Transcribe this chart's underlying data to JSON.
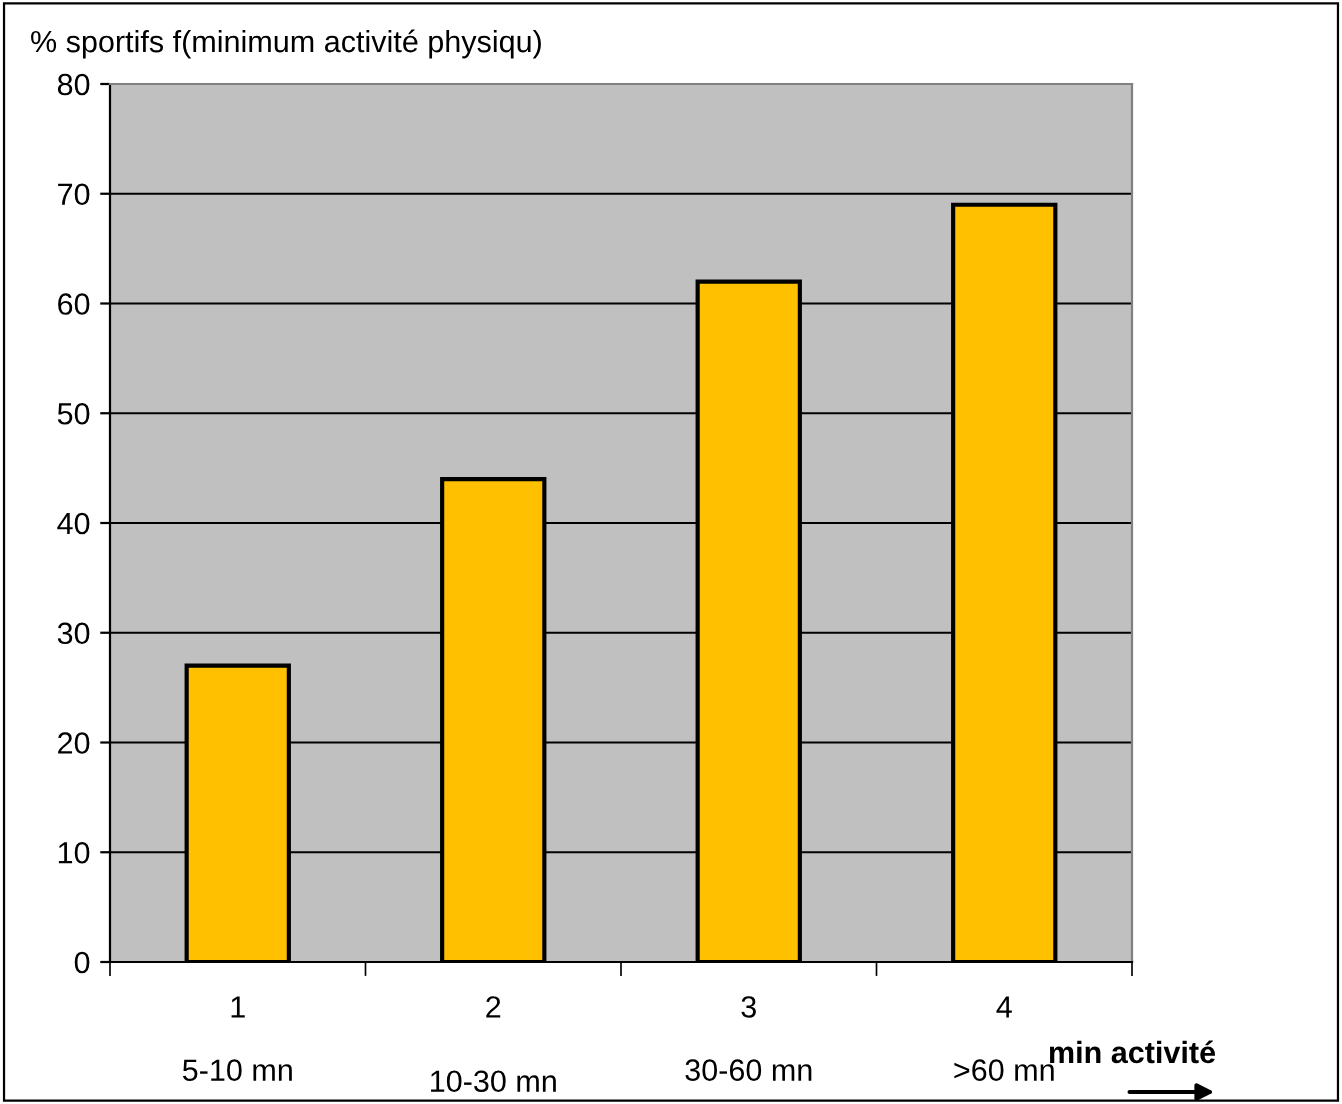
{
  "chart_data": {
    "type": "bar",
    "title": "% sportifs f(minimum activité physiqu)",
    "categories": [
      "1",
      "2",
      "3",
      "4"
    ],
    "values": [
      27,
      44,
      62,
      69
    ],
    "color": "#ffc000",
    "ylim": [
      0,
      80
    ],
    "yticks": [
      0,
      10,
      20,
      30,
      40,
      50,
      60,
      70,
      80
    ],
    "grid": "y",
    "xlabel": "min activité",
    "annotations": [
      "5-10 mn",
      "10-30 mn",
      "30-60 mn",
      ">60 mn"
    ]
  }
}
